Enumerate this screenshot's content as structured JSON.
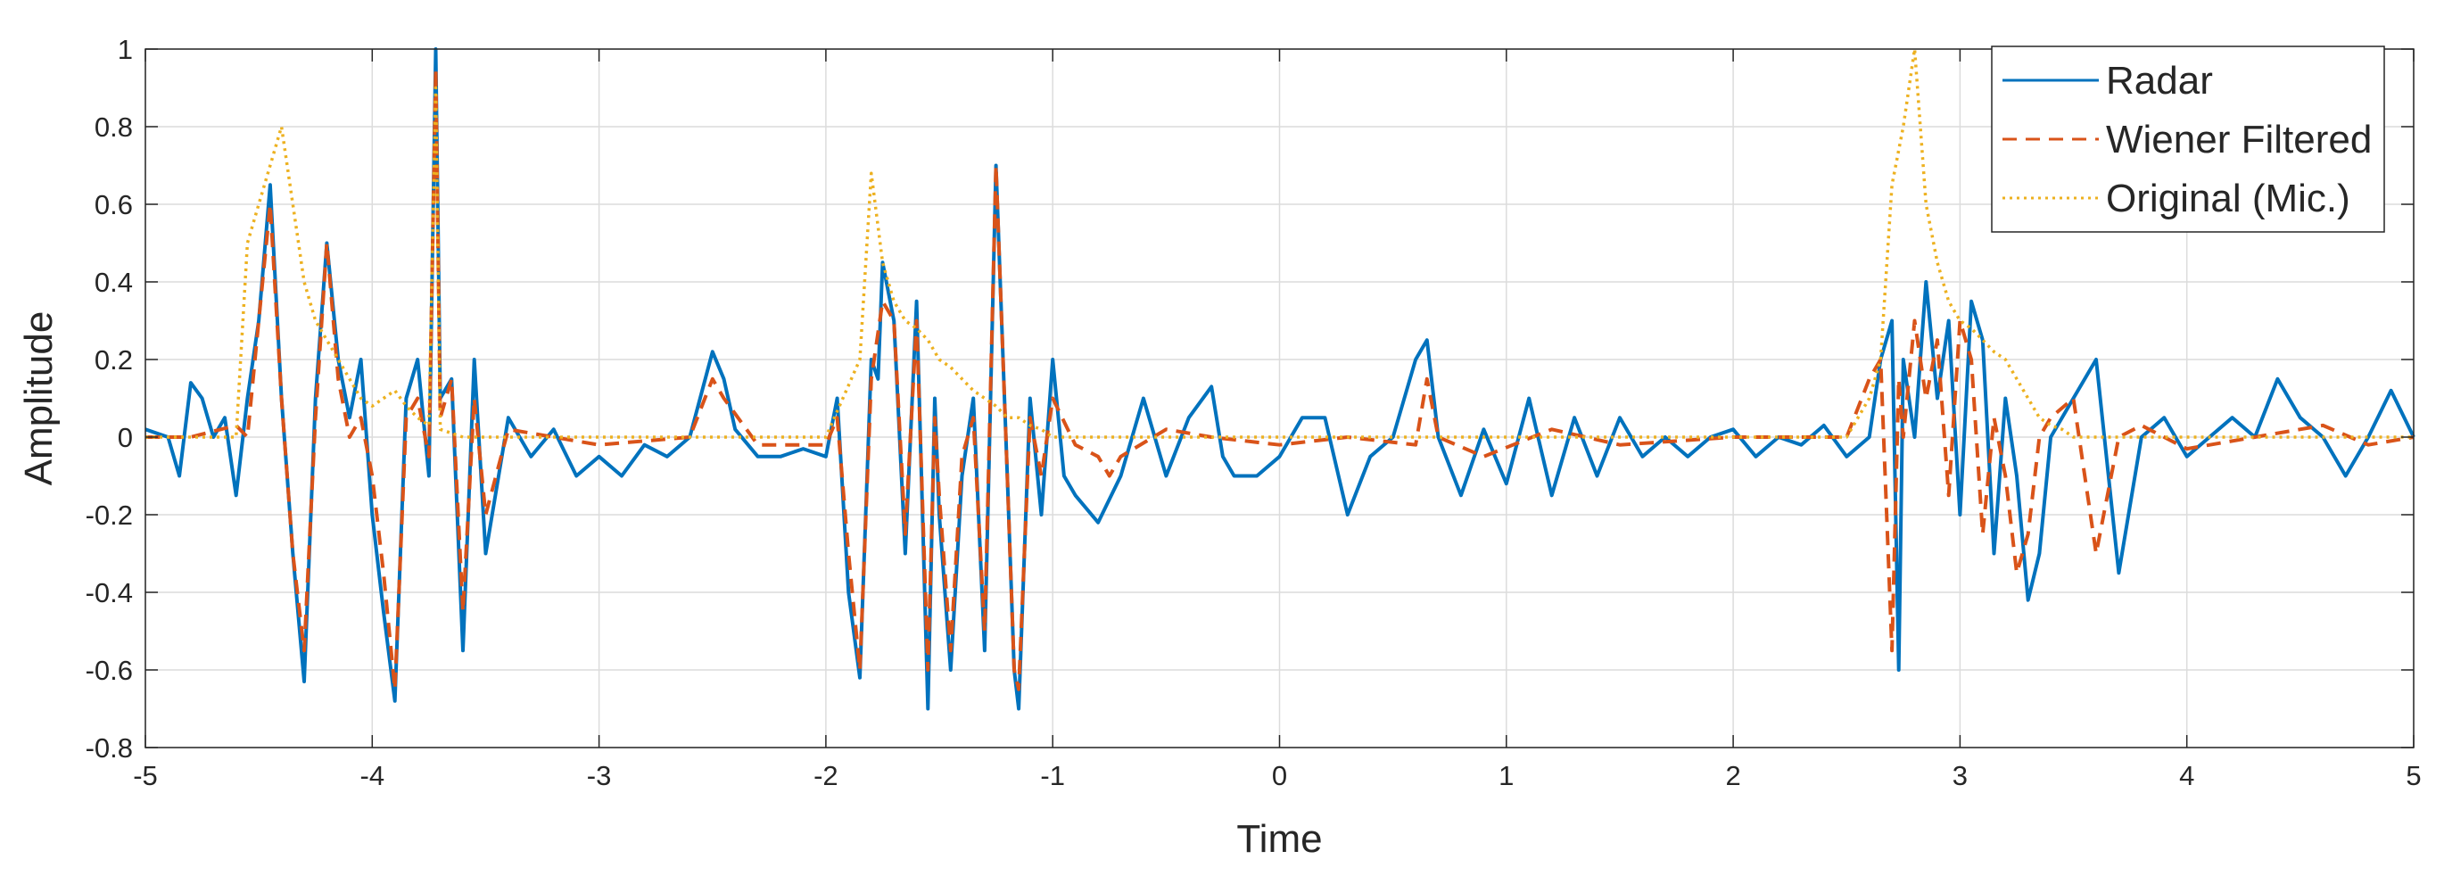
{
  "chart_data": {
    "type": "line",
    "title": "",
    "xlabel": "Time",
    "ylabel": "Amplitude",
    "xlim": [
      -5,
      5
    ],
    "ylim": [
      -0.8,
      1
    ],
    "xticks": [
      -5,
      -4,
      -3,
      -2,
      -1,
      0,
      1,
      2,
      3,
      4,
      5
    ],
    "xtick_labels": [
      "-5",
      "-4",
      "-3",
      "-2",
      "-1",
      "0",
      "1",
      "2",
      "3",
      "4",
      "5"
    ],
    "yticks": [
      -0.8,
      -0.6,
      -0.4,
      -0.2,
      0,
      0.2,
      0.4,
      0.6,
      0.8,
      1
    ],
    "ytick_labels": [
      "-0.8",
      "-0.6",
      "-0.4",
      "-0.2",
      "0",
      "0.2",
      "0.4",
      "0.6",
      "0.8",
      "1"
    ],
    "grid": true,
    "legend_position": "top-right",
    "series": [
      {
        "name": "Radar",
        "color": "#0072BD",
        "style": "solid",
        "x": [
          -5,
          -4.9,
          -4.85,
          -4.8,
          -4.75,
          -4.7,
          -4.65,
          -4.6,
          -4.55,
          -4.5,
          -4.45,
          -4.4,
          -4.35,
          -4.3,
          -4.25,
          -4.2,
          -4.15,
          -4.1,
          -4.05,
          -4.0,
          -3.95,
          -3.9,
          -3.85,
          -3.8,
          -3.75,
          -3.72,
          -3.7,
          -3.65,
          -3.6,
          -3.55,
          -3.5,
          -3.4,
          -3.3,
          -3.2,
          -3.1,
          -3.0,
          -2.9,
          -2.8,
          -2.7,
          -2.6,
          -2.5,
          -2.45,
          -2.4,
          -2.3,
          -2.2,
          -2.1,
          -2.0,
          -1.95,
          -1.9,
          -1.85,
          -1.8,
          -1.77,
          -1.75,
          -1.7,
          -1.65,
          -1.6,
          -1.55,
          -1.52,
          -1.5,
          -1.45,
          -1.4,
          -1.35,
          -1.3,
          -1.25,
          -1.2,
          -1.17,
          -1.15,
          -1.1,
          -1.05,
          -1.0,
          -0.95,
          -0.9,
          -0.8,
          -0.7,
          -0.6,
          -0.5,
          -0.4,
          -0.3,
          -0.25,
          -0.2,
          -0.1,
          0.0,
          0.1,
          0.2,
          0.3,
          0.4,
          0.5,
          0.6,
          0.65,
          0.7,
          0.8,
          0.9,
          1.0,
          1.1,
          1.2,
          1.3,
          1.4,
          1.5,
          1.6,
          1.7,
          1.8,
          1.9,
          2.0,
          2.1,
          2.2,
          2.3,
          2.4,
          2.5,
          2.6,
          2.65,
          2.7,
          2.73,
          2.75,
          2.8,
          2.85,
          2.9,
          2.95,
          3.0,
          3.05,
          3.1,
          3.15,
          3.2,
          3.25,
          3.3,
          3.35,
          3.4,
          3.5,
          3.6,
          3.7,
          3.8,
          3.9,
          4.0,
          4.1,
          4.2,
          4.3,
          4.4,
          4.5,
          4.6,
          4.7,
          4.8,
          4.9,
          5.0
        ],
        "y": [
          0.02,
          0.0,
          -0.1,
          0.14,
          0.1,
          0.0,
          0.05,
          -0.15,
          0.1,
          0.3,
          0.65,
          0.1,
          -0.3,
          -0.63,
          0.1,
          0.5,
          0.2,
          0.05,
          0.2,
          -0.2,
          -0.45,
          -0.68,
          0.1,
          0.2,
          -0.1,
          1.0,
          0.1,
          0.15,
          -0.55,
          0.2,
          -0.3,
          0.05,
          -0.05,
          0.02,
          -0.1,
          -0.05,
          -0.1,
          -0.02,
          -0.05,
          0.0,
          0.22,
          0.15,
          0.02,
          -0.05,
          -0.05,
          -0.03,
          -0.05,
          0.1,
          -0.4,
          -0.62,
          0.2,
          0.15,
          0.45,
          0.3,
          -0.3,
          0.35,
          -0.7,
          0.1,
          -0.2,
          -0.6,
          -0.1,
          0.1,
          -0.55,
          0.7,
          -0.1,
          -0.6,
          -0.7,
          0.1,
          -0.2,
          0.2,
          -0.1,
          -0.15,
          -0.22,
          -0.1,
          0.1,
          -0.1,
          0.05,
          0.13,
          -0.05,
          -0.1,
          -0.1,
          -0.05,
          0.05,
          0.05,
          -0.2,
          -0.05,
          0.0,
          0.2,
          0.25,
          0.0,
          -0.15,
          0.02,
          -0.12,
          0.1,
          -0.15,
          0.05,
          -0.1,
          0.05,
          -0.05,
          0.0,
          -0.05,
          0.0,
          0.02,
          -0.05,
          0.0,
          -0.02,
          0.03,
          -0.05,
          0.0,
          0.2,
          0.3,
          -0.6,
          0.2,
          0.0,
          0.4,
          0.1,
          0.3,
          -0.2,
          0.35,
          0.25,
          -0.3,
          0.1,
          -0.1,
          -0.42,
          -0.3,
          0.0,
          0.1,
          0.2,
          -0.35,
          0.0,
          0.05,
          -0.05,
          0.0,
          0.05,
          0.0,
          0.15,
          0.05,
          0.0,
          -0.1,
          0.0,
          0.12,
          0.0
        ]
      },
      {
        "name": "Wiener Filtered",
        "color": "#D95319",
        "style": "dashed",
        "x": [
          -5,
          -4.8,
          -4.6,
          -4.55,
          -4.5,
          -4.45,
          -4.4,
          -4.35,
          -4.3,
          -4.25,
          -4.2,
          -4.15,
          -4.1,
          -4.05,
          -4.0,
          -3.95,
          -3.9,
          -3.85,
          -3.8,
          -3.75,
          -3.72,
          -3.7,
          -3.65,
          -3.6,
          -3.55,
          -3.5,
          -3.4,
          -3.0,
          -2.6,
          -2.5,
          -2.45,
          -2.3,
          -2.0,
          -1.95,
          -1.9,
          -1.85,
          -1.8,
          -1.75,
          -1.7,
          -1.65,
          -1.6,
          -1.55,
          -1.52,
          -1.5,
          -1.45,
          -1.4,
          -1.35,
          -1.3,
          -1.25,
          -1.2,
          -1.17,
          -1.15,
          -1.1,
          -1.05,
          -1.0,
          -0.9,
          -0.8,
          -0.75,
          -0.7,
          -0.5,
          -0.3,
          0.0,
          0.3,
          0.6,
          0.65,
          0.7,
          0.9,
          1.2,
          1.5,
          2.0,
          2.5,
          2.6,
          2.65,
          2.7,
          2.73,
          2.75,
          2.8,
          2.85,
          2.9,
          2.95,
          3.0,
          3.05,
          3.1,
          3.15,
          3.2,
          3.25,
          3.3,
          3.35,
          3.4,
          3.5,
          3.6,
          3.7,
          3.8,
          4.0,
          4.3,
          4.6,
          4.8,
          5.0
        ],
        "y": [
          0.0,
          0.0,
          0.03,
          0.0,
          0.3,
          0.6,
          0.1,
          -0.3,
          -0.55,
          0.05,
          0.5,
          0.15,
          0.0,
          0.05,
          -0.1,
          -0.35,
          -0.65,
          0.05,
          0.1,
          -0.05,
          0.95,
          0.05,
          0.15,
          -0.45,
          0.1,
          -0.2,
          0.02,
          -0.02,
          0.0,
          0.15,
          0.1,
          -0.02,
          -0.02,
          0.05,
          -0.3,
          -0.6,
          0.15,
          0.35,
          0.3,
          -0.25,
          0.3,
          -0.6,
          0.05,
          -0.15,
          -0.55,
          -0.05,
          0.05,
          -0.5,
          0.7,
          -0.1,
          -0.6,
          -0.65,
          0.05,
          -0.1,
          0.1,
          -0.02,
          -0.05,
          -0.1,
          -0.05,
          0.02,
          0.0,
          -0.02,
          0.0,
          -0.02,
          0.15,
          0.0,
          -0.05,
          0.02,
          -0.02,
          0.0,
          0.0,
          0.15,
          0.2,
          -0.55,
          0.15,
          0.0,
          0.3,
          0.1,
          0.25,
          -0.15,
          0.3,
          0.2,
          -0.25,
          0.05,
          -0.1,
          -0.35,
          -0.25,
          0.0,
          0.05,
          0.1,
          -0.3,
          0.0,
          0.03,
          -0.03,
          0.0,
          0.03,
          -0.02,
          0.0
        ]
      },
      {
        "name": "Original (Mic.)",
        "color": "#EDB120",
        "style": "dotted",
        "x": [
          -5.0,
          -4.6,
          -4.55,
          -4.5,
          -4.45,
          -4.4,
          -4.35,
          -4.3,
          -4.25,
          -4.2,
          -4.15,
          -4.1,
          -4.05,
          -4.0,
          -3.95,
          -3.9,
          -3.85,
          -3.8,
          -3.75,
          -3.72,
          -3.7,
          -3.6,
          -3.0,
          -2.5,
          -2.0,
          -1.85,
          -1.8,
          -1.75,
          -1.7,
          -1.65,
          -1.6,
          -1.55,
          -1.5,
          -1.45,
          -1.4,
          -1.35,
          -1.3,
          -1.25,
          -1.2,
          -1.15,
          -1.1,
          -1.05,
          -1.0,
          -0.5,
          0.0,
          0.5,
          1.0,
          1.5,
          2.0,
          2.5,
          2.6,
          2.65,
          2.7,
          2.75,
          2.8,
          2.85,
          2.9,
          2.95,
          3.0,
          3.05,
          3.1,
          3.15,
          3.2,
          3.25,
          3.3,
          3.35,
          3.4,
          3.45,
          3.5,
          4.0,
          4.5,
          5.0
        ],
        "y": [
          0.0,
          0.0,
          0.5,
          0.6,
          0.7,
          0.8,
          0.6,
          0.4,
          0.3,
          0.25,
          0.2,
          0.15,
          0.1,
          0.08,
          0.1,
          0.12,
          0.08,
          0.05,
          0.03,
          0.9,
          0.02,
          0.0,
          0.0,
          0.0,
          0.0,
          0.2,
          0.68,
          0.45,
          0.35,
          0.3,
          0.28,
          0.25,
          0.2,
          0.18,
          0.15,
          0.12,
          0.1,
          0.08,
          0.05,
          0.05,
          0.03,
          0.02,
          0.0,
          0.0,
          0.0,
          0.0,
          0.0,
          0.0,
          0.0,
          0.0,
          0.1,
          0.2,
          0.65,
          0.8,
          1.0,
          0.6,
          0.45,
          0.35,
          0.3,
          0.28,
          0.25,
          0.22,
          0.2,
          0.15,
          0.1,
          0.05,
          0.03,
          0.02,
          0.0,
          0.0,
          0.0,
          0.0
        ]
      }
    ]
  }
}
